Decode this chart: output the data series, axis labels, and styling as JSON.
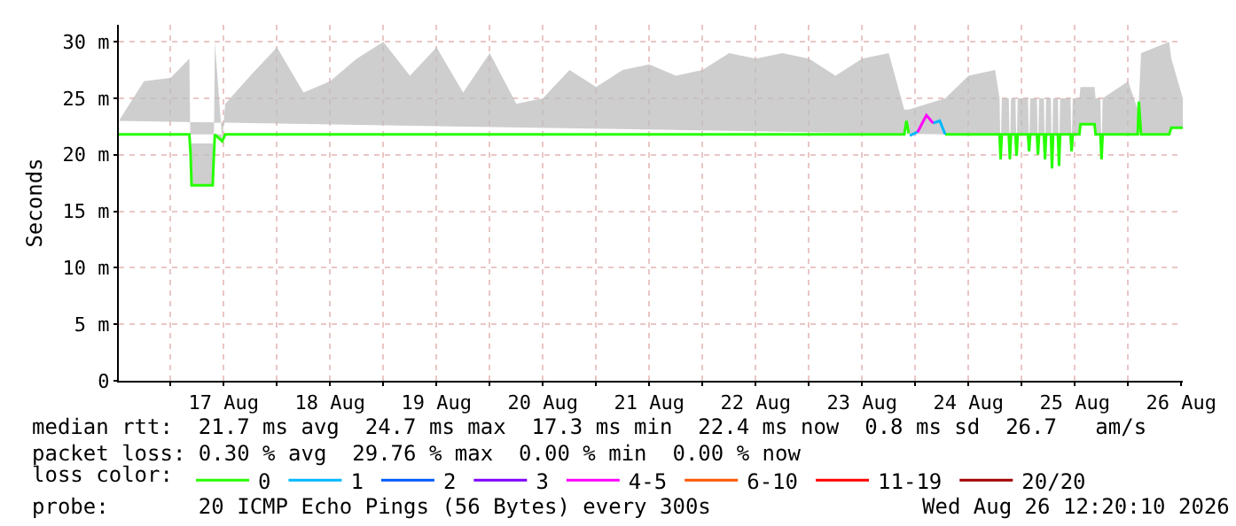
{
  "chart_data": {
    "type": "line",
    "ylabel": "Seconds",
    "legend_title": "loss color:",
    "legend": "bottom",
    "grid": true,
    "marker": "none",
    "line_style": "solid",
    "xlim": [
      "2026-08-16T12:20",
      "2026-08-26T12:20"
    ],
    "xticks": [
      {
        "value": "2026-08-17T00:00",
        "label": null
      },
      {
        "value": "2026-08-17T12:00",
        "label": "17 Aug"
      },
      {
        "value": "2026-08-18T00:00",
        "label": null
      },
      {
        "value": "2026-08-18T12:00",
        "label": "18 Aug"
      },
      {
        "value": "2026-08-19T00:00",
        "label": null
      },
      {
        "value": "2026-08-19T12:00",
        "label": "19 Aug"
      },
      {
        "value": "2026-08-20T00:00",
        "label": null
      },
      {
        "value": "2026-08-20T12:00",
        "label": "20 Aug"
      },
      {
        "value": "2026-08-21T00:00",
        "label": null
      },
      {
        "value": "2026-08-21T12:00",
        "label": "21 Aug"
      },
      {
        "value": "2026-08-22T00:00",
        "label": null
      },
      {
        "value": "2026-08-22T12:00",
        "label": "22 Aug"
      },
      {
        "value": "2026-08-23T00:00",
        "label": null
      },
      {
        "value": "2026-08-23T12:00",
        "label": "23 Aug"
      },
      {
        "value": "2026-08-24T00:00",
        "label": null
      },
      {
        "value": "2026-08-24T12:00",
        "label": "24 Aug"
      },
      {
        "value": "2026-08-25T00:00",
        "label": null
      },
      {
        "value": "2026-08-25T12:00",
        "label": "25 Aug"
      },
      {
        "value": "2026-08-26T00:00",
        "label": null
      },
      {
        "value": "2026-08-26T12:00",
        "label": "26 Aug"
      }
    ],
    "ylim": [
      0,
      31.5
    ],
    "yticks": [
      0,
      {
        "value": 5,
        "label": "5 m"
      },
      {
        "value": 10,
        "label": "10 m"
      },
      {
        "value": 15,
        "label": "15 m"
      },
      {
        "value": 20,
        "label": "20 m"
      },
      {
        "value": 25,
        "label": "25 m"
      },
      {
        "value": 30,
        "label": "30 m"
      }
    ],
    "annotations": [
      "median rtt:  21.7 ms avg  24.7 ms max  17.3 ms min  22.4 ms now  0.8 ms sd  26.7   am/s",
      "packet loss: 0.30 % avg  29.76 % max  0.00 % min  0.00 % now",
      "probe:       20 ICMP Echo Pings (56 Bytes) every 300s",
      "Wed Aug 26 12:20:10 2026"
    ],
    "series": [
      {
        "name": "0",
        "color": "#26ff00",
        "x": [
          "2026-08-16T12:20",
          "2026-08-16T18:00",
          "2026-08-17T00:00",
          "2026-08-17T04:15",
          "2026-08-17T04:30",
          "2026-08-17T04:45",
          "2026-08-17T09:30",
          "2026-08-17T09:45",
          "2026-08-17T10:00",
          "2026-08-17T11:40",
          "2026-08-17T12:20",
          "2026-08-17T18:00",
          "2026-08-18T00:00",
          "2026-08-18T06:00",
          "2026-08-18T12:00",
          "2026-08-18T18:00",
          "2026-08-19T00:00",
          "2026-08-19T06:00",
          "2026-08-19T12:00",
          "2026-08-19T18:00",
          "2026-08-20T00:00",
          "2026-08-20T06:00",
          "2026-08-20T12:00",
          "2026-08-20T18:00",
          "2026-08-21T00:00",
          "2026-08-21T06:00",
          "2026-08-21T12:00",
          "2026-08-21T18:00",
          "2026-08-22T00:00",
          "2026-08-22T06:00",
          "2026-08-22T12:00",
          "2026-08-22T18:00",
          "2026-08-23T00:00",
          "2026-08-23T06:00",
          "2026-08-23T12:00",
          "2026-08-23T18:00",
          "2026-08-23T21:30",
          "2026-08-23T22:00",
          "2026-08-23T22:30",
          "2026-08-23T22:45",
          "2026-08-24T06:45",
          "2026-08-24T12:00",
          "2026-08-24T18:00",
          "2026-08-24T19:00",
          "2026-08-24T19:14",
          "2026-08-24T19:30",
          "2026-08-24T21:05",
          "2026-08-24T21:20",
          "2026-08-24T21:35",
          "2026-08-24T22:35",
          "2026-08-24T22:50",
          "2026-08-24T23:05",
          "2026-08-25T01:25",
          "2026-08-25T01:40",
          "2026-08-25T01:55",
          "2026-08-25T03:25",
          "2026-08-25T03:40",
          "2026-08-25T03:55",
          "2026-08-25T05:00",
          "2026-08-25T05:15",
          "2026-08-25T05:30",
          "2026-08-25T06:35",
          "2026-08-25T06:50",
          "2026-08-25T07:05",
          "2026-08-25T08:10",
          "2026-08-25T08:25",
          "2026-08-25T08:40",
          "2026-08-25T11:00",
          "2026-08-25T11:15",
          "2026-08-25T11:30",
          "2026-08-25T13:00",
          "2026-08-25T13:15",
          "2026-08-25T16:25",
          "2026-08-25T16:40",
          "2026-08-25T17:45",
          "2026-08-25T18:00",
          "2026-08-25T18:15",
          "2026-08-26T00:00",
          "2026-08-26T02:10",
          "2026-08-26T02:25",
          "2026-08-26T02:55",
          "2026-08-26T09:15",
          "2026-08-26T09:45",
          "2026-08-26T12:20"
        ],
        "values": [
          21.8,
          21.8,
          21.8,
          21.8,
          20.2,
          17.3,
          17.3,
          19.7,
          21.8,
          21.2,
          21.8,
          21.8,
          21.8,
          21.8,
          21.8,
          21.8,
          21.8,
          21.8,
          21.8,
          21.8,
          21.8,
          21.8,
          21.8,
          21.8,
          21.8,
          21.8,
          21.8,
          21.8,
          21.8,
          21.8,
          21.8,
          21.8,
          21.8,
          21.8,
          21.8,
          21.8,
          21.8,
          23.0,
          21.9,
          null,
          21.8,
          21.8,
          21.8,
          21.8,
          19.6,
          21.8,
          21.8,
          19.6,
          21.8,
          21.8,
          19.9,
          21.8,
          21.8,
          20.3,
          21.8,
          21.8,
          20.0,
          21.8,
          21.8,
          19.6,
          21.8,
          21.8,
          18.8,
          21.8,
          21.8,
          19.0,
          21.8,
          21.8,
          20.3,
          21.8,
          21.8,
          22.7,
          22.7,
          21.8,
          21.8,
          19.6,
          21.8,
          21.8,
          21.8,
          24.7,
          21.8,
          21.8,
          22.4,
          22.4
        ],
        "lower": [
          21.8,
          21.8,
          21.8,
          21.8,
          20.2,
          17.3,
          17.3,
          19.7,
          21.8,
          21.2,
          21.8,
          21.8,
          21.8,
          21.8,
          21.8,
          21.8,
          21.8,
          21.8,
          21.8,
          21.8,
          21.8,
          21.8,
          21.8,
          21.8,
          21.8,
          21.8,
          21.8,
          21.8,
          21.8,
          21.8,
          21.8,
          21.8,
          21.8,
          21.8,
          21.8,
          21.8,
          21.8,
          23.0,
          21.9,
          null,
          21.8,
          21.8,
          21.8,
          21.8,
          19.6,
          21.8,
          21.8,
          19.6,
          21.8,
          21.8,
          19.9,
          21.8,
          21.8,
          20.3,
          21.8,
          21.8,
          20.0,
          21.8,
          21.8,
          19.6,
          21.8,
          21.8,
          18.8,
          21.8,
          21.8,
          19.0,
          21.8,
          21.8,
          20.3,
          21.8,
          21.8,
          22.7,
          22.7,
          21.8,
          21.8,
          19.6,
          21.8,
          21.8,
          21.8,
          24.7,
          21.8,
          21.8,
          22.4,
          22.4
        ],
        "upper": [
          23.0,
          26.5,
          26.8,
          28.5,
          20.2,
          21.0,
          21.0,
          19.7,
          30.0,
          21.2,
          24.5,
          27.0,
          29.5,
          25.5,
          26.5,
          28.5,
          30.0,
          27.0,
          29.5,
          25.5,
          29.0,
          24.5,
          25.0,
          27.5,
          26.0,
          27.5,
          28.0,
          27.0,
          27.5,
          29.0,
          28.5,
          29.0,
          28.5,
          27.0,
          28.5,
          29.0,
          24.0,
          24.0,
          24.0,
          null,
          25.0,
          27.0,
          27.5,
          25.0,
          19.6,
          25.0,
          25.0,
          19.6,
          25.0,
          25.0,
          19.9,
          25.0,
          25.0,
          20.3,
          25.0,
          25.0,
          20.0,
          25.0,
          25.0,
          19.6,
          25.0,
          25.0,
          18.8,
          25.0,
          25.0,
          19.0,
          25.0,
          25.0,
          20.3,
          25.0,
          25.0,
          26.0,
          26.0,
          25.0,
          25.0,
          19.6,
          25.0,
          26.5,
          24.0,
          24.7,
          29.0,
          30.0,
          28.5,
          25.0
        ]
      },
      {
        "name": "1",
        "color": "#00b8ff",
        "x": [
          "2026-08-23T22:45",
          "2026-08-24T00:30",
          "2026-08-24T02:00",
          "2026-08-24T04:00",
          "2026-08-24T05:30",
          "2026-08-24T06:45"
        ],
        "values": [
          21.7,
          22.0,
          null,
          22.8,
          23.0,
          21.8
        ]
      },
      {
        "name": "2",
        "color": "#0059ff"
      },
      {
        "name": "3",
        "color": "#7e00ff"
      },
      {
        "name": "4-5",
        "color": "#ff00ff",
        "x": [
          "2026-08-24T00:30",
          "2026-08-24T02:30",
          "2026-08-24T04:00"
        ],
        "values": [
          22.0,
          23.5,
          22.8
        ]
      },
      {
        "name": "6-10",
        "color": "#ff5500"
      },
      {
        "name": "11-19",
        "color": "#ff0000"
      },
      {
        "name": "20/20",
        "color": "#a10000"
      }
    ]
  }
}
